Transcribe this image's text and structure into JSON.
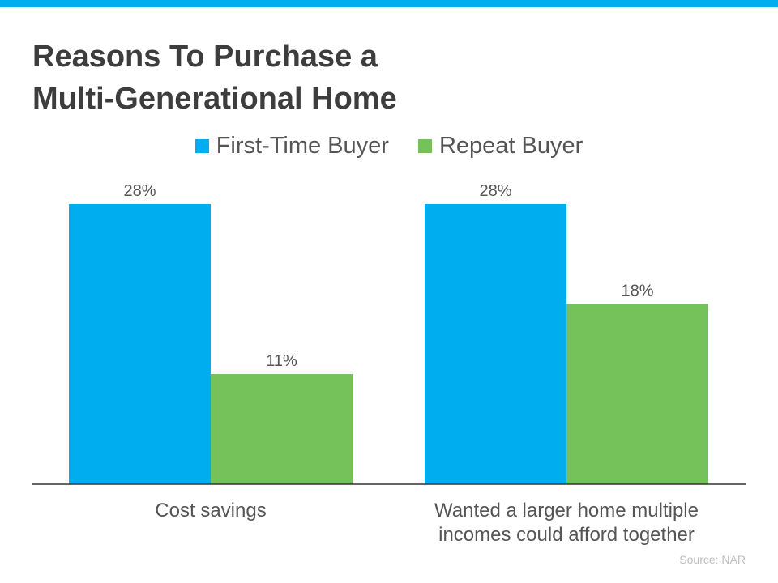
{
  "colors": {
    "accent_bar": "#00AEEF",
    "first_time": "#00AEEF",
    "repeat": "#75C15A",
    "title": "#3d3d3d",
    "label": "#555555",
    "axis": "#333333",
    "source": "#bdbdbd"
  },
  "title_lines": [
    "Reasons To Purchase a",
    "Multi-Generational Home"
  ],
  "source": "Source: NAR",
  "chart_data": {
    "type": "bar",
    "title": "Reasons To Purchase a Multi-Generational Home",
    "categories": [
      [
        "Cost savings"
      ],
      [
        "Wanted a larger home multiple",
        "incomes could afford together"
      ]
    ],
    "series": [
      {
        "name": "First-Time Buyer",
        "color": "#00AEEF",
        "values": [
          28,
          28
        ],
        "labels": [
          "28%",
          "28%"
        ]
      },
      {
        "name": "Repeat Buyer",
        "color": "#75C15A",
        "values": [
          11,
          18
        ],
        "labels": [
          "11%",
          "18%"
        ]
      }
    ],
    "unit": "%",
    "ylim": [
      0,
      28
    ],
    "grid": false,
    "legend_position": "top-center",
    "xlabel": "",
    "ylabel": ""
  }
}
